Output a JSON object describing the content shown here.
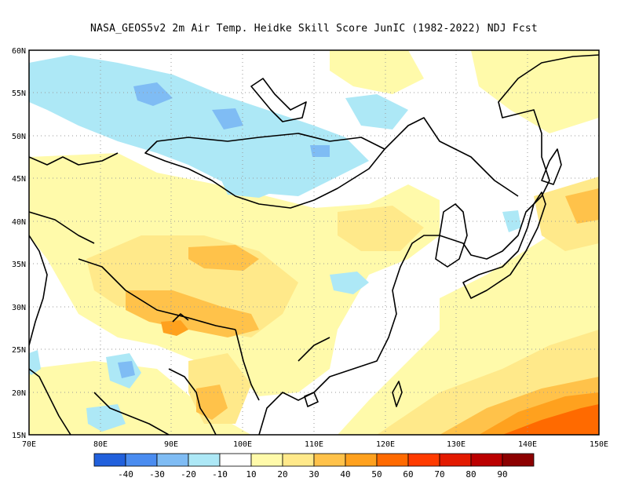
{
  "title": "NASA_GEOS5v2  2m Air Temp. Heidke Skill Score JunIC (1982-2022) NDJ Fcst",
  "map": {
    "lon_range": [
      70,
      150
    ],
    "lat_range": [
      15,
      60
    ],
    "lon_ticks": [
      "70E",
      "80E",
      "90E",
      "100E",
      "110E",
      "120E",
      "130E",
      "140E",
      "150E"
    ],
    "lat_ticks": [
      "15N",
      "20N",
      "25N",
      "30N",
      "35N",
      "40N",
      "45N",
      "50N",
      "55N",
      "60N"
    ],
    "gridlines": "dotted"
  },
  "colorbar": {
    "colors": [
      "#2160dc",
      "#4a8cf0",
      "#7fbcf4",
      "#ade8f6",
      "#ffffff",
      "#fffaaa",
      "#ffe98a",
      "#ffc24a",
      "#ffa11e",
      "#ff6a00",
      "#ff3b00",
      "#e31a00",
      "#bb0000",
      "#8c0000"
    ],
    "labels": [
      "-40",
      "-30",
      "-20",
      "-10",
      "10",
      "20",
      "30",
      "40",
      "50",
      "60",
      "70",
      "80",
      "90"
    ]
  },
  "colors": {
    "negative_light": "#ade8f6",
    "negative_medium": "#7fbcf4",
    "negative_strong": "#4a8cf0",
    "positive_light": "#fffaaa",
    "positive_medium": "#ffe98a",
    "positive_orange": "#ffc24a",
    "positive_dark_orange": "#ffa11e",
    "positive_red_orange": "#ff6a00",
    "coastline": "#000000"
  }
}
